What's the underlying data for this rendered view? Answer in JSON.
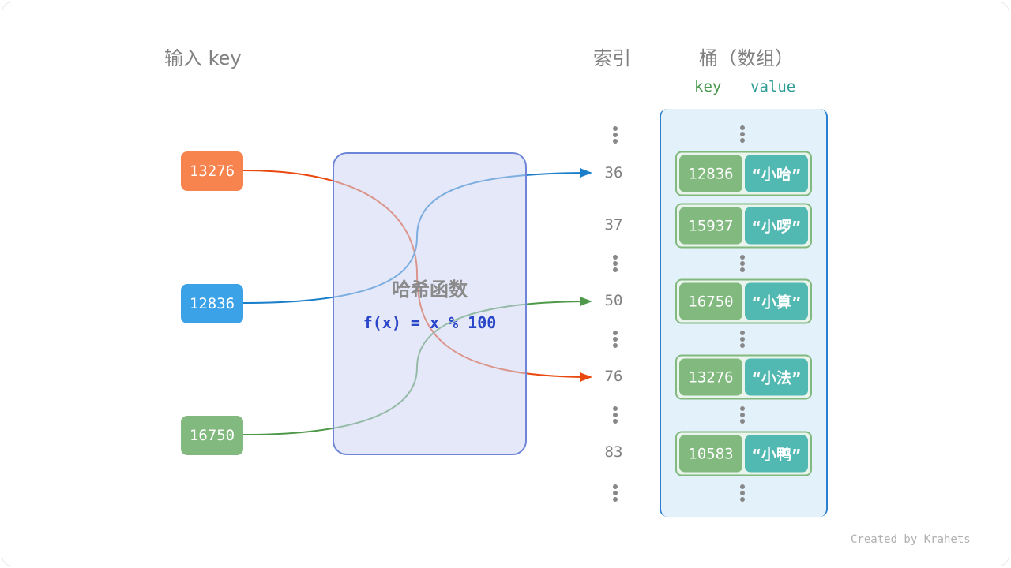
{
  "headers": {
    "input": "输入 key",
    "index": "索引",
    "bucket": "桶（数组）",
    "col_key": "key",
    "col_value": "value"
  },
  "inputs": [
    {
      "key": "13276",
      "color": "#f7834f",
      "line_color": "#e9490f",
      "target_index": "76"
    },
    {
      "key": "12836",
      "color": "#3ca2e8",
      "line_color": "#1a7fc8",
      "target_index": "36"
    },
    {
      "key": "16750",
      "color": "#82b97e",
      "line_color": "#4f9a4a",
      "target_index": "50"
    }
  ],
  "hash_function": {
    "title": "哈希函数",
    "formula": "f(x) = x % 100"
  },
  "indices": [
    "36",
    "37",
    "50",
    "76",
    "83"
  ],
  "buckets": [
    {
      "index": "36",
      "key": "12836",
      "value": "“小哈”"
    },
    {
      "index": "37",
      "key": "15937",
      "value": "“小啰”"
    },
    {
      "index": "50",
      "key": "16750",
      "value": "“小算”"
    },
    {
      "index": "76",
      "key": "13276",
      "value": "“小法”"
    },
    {
      "index": "83",
      "key": "10583",
      "value": "“小鸭”"
    }
  ],
  "credit": "Created by Krahets"
}
